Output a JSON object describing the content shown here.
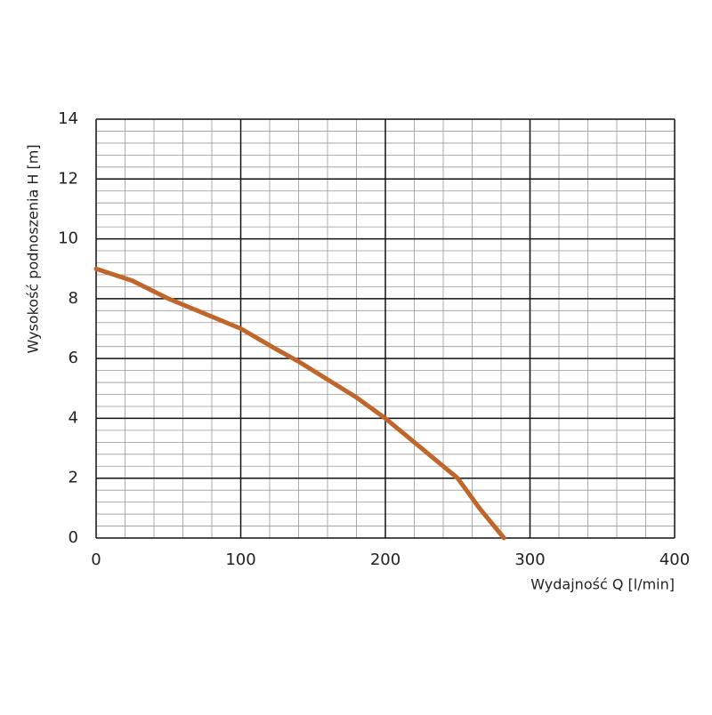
{
  "chart_data": {
    "type": "line",
    "xlabel": "Wydajność Q [l/min]",
    "ylabel": "Wysokość podnoszenia H [m]",
    "x": [
      0,
      25,
      50,
      75,
      100,
      125,
      140,
      160,
      180,
      200,
      225,
      250,
      265,
      282
    ],
    "series": [
      {
        "color": "#c0652b",
        "values": [
          9,
          8.6,
          8.0,
          7.5,
          7.0,
          6.3,
          5.9,
          5.3,
          4.7,
          4.0,
          3.0,
          2.0,
          1.0,
          0
        ]
      }
    ],
    "xlim": [
      0,
      400
    ],
    "xticks": [
      0,
      100,
      200,
      300,
      400
    ],
    "ylim": [
      0,
      14
    ],
    "yticks": [
      0,
      2,
      4,
      6,
      8,
      10,
      12,
      14
    ],
    "grid": true
  }
}
